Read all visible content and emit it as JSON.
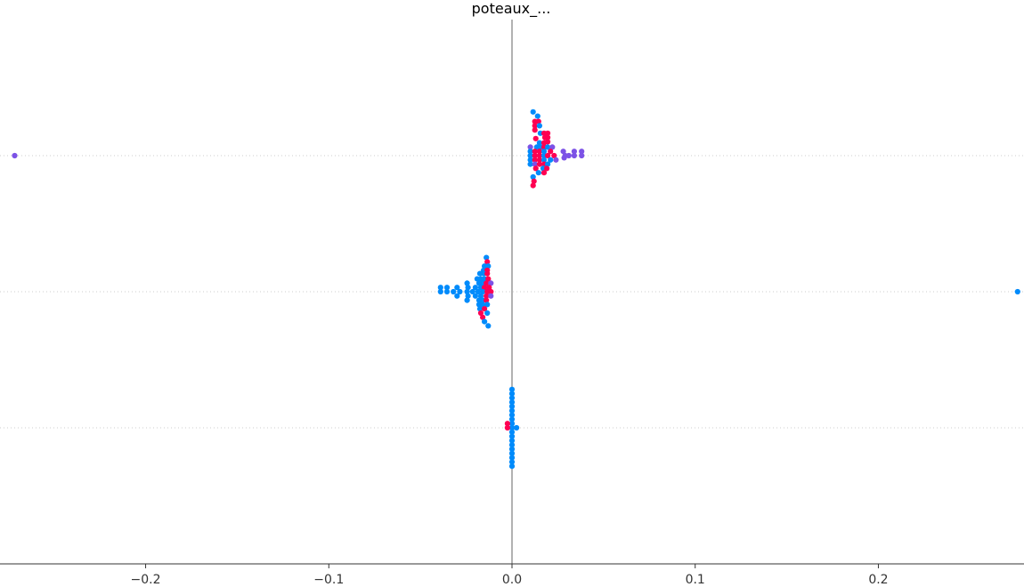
{
  "chart_data": {
    "type": "scatter",
    "title": "poteaux_...",
    "xlabel": "",
    "ylabel": "",
    "xlim": [
      -0.2795,
      0.2795
    ],
    "x_ticks": [
      -0.2,
      -0.1,
      0.0,
      0.1,
      0.2
    ],
    "x_tick_labels": [
      "−0.2",
      "−0.1",
      "0.0",
      "0.1",
      "0.2"
    ],
    "y_categories": [
      "row_1",
      "row_2",
      "row_3"
    ],
    "grid": false,
    "colors": {
      "low": "#008bfb",
      "mid": "#7c52e6",
      "high": "#ff0052",
      "zero_line": "#999999",
      "axis": "#333333",
      "row_line": "#cccccc"
    },
    "rows": [
      {
        "row": 0,
        "points": [
          {
            "x": -0.2715,
            "y": 0.0,
            "c": "mid"
          },
          {
            "x": 0.0115,
            "y": 0.82,
            "c": "low"
          },
          {
            "x": 0.014,
            "y": 0.74,
            "c": "low"
          },
          {
            "x": 0.0125,
            "y": 0.64,
            "c": "high"
          },
          {
            "x": 0.0145,
            "y": 0.64,
            "c": "high"
          },
          {
            "x": 0.0125,
            "y": 0.56,
            "c": "high"
          },
          {
            "x": 0.015,
            "y": 0.56,
            "c": "low"
          },
          {
            "x": 0.0125,
            "y": 0.48,
            "c": "high"
          },
          {
            "x": 0.0155,
            "y": 0.42,
            "c": "low"
          },
          {
            "x": 0.0175,
            "y": 0.42,
            "c": "high"
          },
          {
            "x": 0.0195,
            "y": 0.42,
            "c": "high"
          },
          {
            "x": 0.013,
            "y": 0.32,
            "c": "high"
          },
          {
            "x": 0.018,
            "y": 0.34,
            "c": "high"
          },
          {
            "x": 0.0195,
            "y": 0.34,
            "c": "high"
          },
          {
            "x": 0.015,
            "y": 0.24,
            "c": "low"
          },
          {
            "x": 0.0175,
            "y": 0.24,
            "c": "high"
          },
          {
            "x": 0.0195,
            "y": 0.26,
            "c": "high"
          },
          {
            "x": 0.01,
            "y": 0.16,
            "c": "mid"
          },
          {
            "x": 0.0135,
            "y": 0.16,
            "c": "low"
          },
          {
            "x": 0.0155,
            "y": 0.16,
            "c": "low"
          },
          {
            "x": 0.0175,
            "y": 0.16,
            "c": "high"
          },
          {
            "x": 0.0195,
            "y": 0.16,
            "c": "low"
          },
          {
            "x": 0.022,
            "y": 0.16,
            "c": "mid"
          },
          {
            "x": 0.01,
            "y": 0.08,
            "c": "low"
          },
          {
            "x": 0.0125,
            "y": 0.08,
            "c": "high"
          },
          {
            "x": 0.015,
            "y": 0.08,
            "c": "high"
          },
          {
            "x": 0.0175,
            "y": 0.08,
            "c": "low"
          },
          {
            "x": 0.021,
            "y": 0.08,
            "c": "high"
          },
          {
            "x": 0.028,
            "y": 0.08,
            "c": "mid"
          },
          {
            "x": 0.034,
            "y": 0.08,
            "c": "mid"
          },
          {
            "x": 0.038,
            "y": 0.08,
            "c": "mid"
          },
          {
            "x": 0.01,
            "y": 0.0,
            "c": "low"
          },
          {
            "x": 0.0125,
            "y": 0.0,
            "c": "high"
          },
          {
            "x": 0.015,
            "y": 0.0,
            "c": "high"
          },
          {
            "x": 0.0175,
            "y": 0.0,
            "c": "low"
          },
          {
            "x": 0.0195,
            "y": 0.0,
            "c": "high"
          },
          {
            "x": 0.023,
            "y": 0.0,
            "c": "high"
          },
          {
            "x": 0.029,
            "y": 0.0,
            "c": "mid"
          },
          {
            "x": 0.031,
            "y": 0.0,
            "c": "mid"
          },
          {
            "x": 0.034,
            "y": 0.0,
            "c": "mid"
          },
          {
            "x": 0.038,
            "y": 0.0,
            "c": "mid"
          },
          {
            "x": 0.01,
            "y": -0.08,
            "c": "low"
          },
          {
            "x": 0.0125,
            "y": -0.08,
            "c": "high"
          },
          {
            "x": 0.015,
            "y": -0.08,
            "c": "high"
          },
          {
            "x": 0.0175,
            "y": -0.08,
            "c": "low"
          },
          {
            "x": 0.021,
            "y": -0.08,
            "c": "low"
          },
          {
            "x": 0.024,
            "y": -0.08,
            "c": "mid"
          },
          {
            "x": 0.0285,
            "y": -0.04,
            "c": "mid"
          },
          {
            "x": 0.01,
            "y": -0.16,
            "c": "low"
          },
          {
            "x": 0.0125,
            "y": -0.16,
            "c": "mid"
          },
          {
            "x": 0.015,
            "y": -0.16,
            "c": "high"
          },
          {
            "x": 0.0175,
            "y": -0.16,
            "c": "high"
          },
          {
            "x": 0.0195,
            "y": -0.16,
            "c": "low"
          },
          {
            "x": 0.013,
            "y": -0.24,
            "c": "high"
          },
          {
            "x": 0.017,
            "y": -0.24,
            "c": "low"
          },
          {
            "x": 0.019,
            "y": -0.24,
            "c": "high"
          },
          {
            "x": 0.0145,
            "y": -0.32,
            "c": "low"
          },
          {
            "x": 0.0175,
            "y": -0.32,
            "c": "high"
          },
          {
            "x": 0.0115,
            "y": -0.4,
            "c": "low"
          },
          {
            "x": 0.012,
            "y": -0.48,
            "c": "high"
          },
          {
            "x": 0.0115,
            "y": -0.56,
            "c": "high"
          }
        ]
      },
      {
        "row": 1,
        "points": [
          {
            "x": 0.276,
            "y": 0.0,
            "c": "low"
          },
          {
            "x": -0.014,
            "y": 0.64,
            "c": "low"
          },
          {
            "x": -0.0135,
            "y": 0.56,
            "c": "high"
          },
          {
            "x": -0.015,
            "y": 0.48,
            "c": "low"
          },
          {
            "x": -0.013,
            "y": 0.48,
            "c": "low"
          },
          {
            "x": -0.0155,
            "y": 0.4,
            "c": "low"
          },
          {
            "x": -0.0135,
            "y": 0.4,
            "c": "high"
          },
          {
            "x": -0.0175,
            "y": 0.34,
            "c": "low"
          },
          {
            "x": -0.0155,
            "y": 0.34,
            "c": "low"
          },
          {
            "x": -0.0135,
            "y": 0.34,
            "c": "high"
          },
          {
            "x": -0.019,
            "y": 0.24,
            "c": "low"
          },
          {
            "x": -0.017,
            "y": 0.24,
            "c": "low"
          },
          {
            "x": -0.015,
            "y": 0.24,
            "c": "low"
          },
          {
            "x": -0.013,
            "y": 0.24,
            "c": "high"
          },
          {
            "x": -0.0245,
            "y": 0.16,
            "c": "low"
          },
          {
            "x": -0.018,
            "y": 0.16,
            "c": "low"
          },
          {
            "x": -0.016,
            "y": 0.16,
            "c": "low"
          },
          {
            "x": -0.014,
            "y": 0.16,
            "c": "high"
          },
          {
            "x": -0.0115,
            "y": 0.16,
            "c": "mid"
          },
          {
            "x": -0.039,
            "y": 0.08,
            "c": "low"
          },
          {
            "x": -0.0355,
            "y": 0.08,
            "c": "low"
          },
          {
            "x": -0.03,
            "y": 0.08,
            "c": "low"
          },
          {
            "x": -0.024,
            "y": 0.08,
            "c": "low"
          },
          {
            "x": -0.02,
            "y": 0.08,
            "c": "low"
          },
          {
            "x": -0.017,
            "y": 0.08,
            "c": "low"
          },
          {
            "x": -0.015,
            "y": 0.08,
            "c": "high"
          },
          {
            "x": -0.0125,
            "y": 0.08,
            "c": "high"
          },
          {
            "x": -0.039,
            "y": 0.0,
            "c": "low"
          },
          {
            "x": -0.0355,
            "y": 0.0,
            "c": "low"
          },
          {
            "x": -0.032,
            "y": 0.0,
            "c": "low"
          },
          {
            "x": -0.0285,
            "y": 0.0,
            "c": "low"
          },
          {
            "x": -0.0245,
            "y": 0.0,
            "c": "low"
          },
          {
            "x": -0.0215,
            "y": 0.0,
            "c": "low"
          },
          {
            "x": -0.0185,
            "y": 0.0,
            "c": "low"
          },
          {
            "x": -0.016,
            "y": 0.0,
            "c": "low"
          },
          {
            "x": -0.0135,
            "y": 0.0,
            "c": "high"
          },
          {
            "x": -0.0115,
            "y": 0.0,
            "c": "high"
          },
          {
            "x": -0.03,
            "y": -0.08,
            "c": "low"
          },
          {
            "x": -0.024,
            "y": -0.08,
            "c": "low"
          },
          {
            "x": -0.02,
            "y": -0.08,
            "c": "low"
          },
          {
            "x": -0.017,
            "y": -0.08,
            "c": "low"
          },
          {
            "x": -0.014,
            "y": -0.08,
            "c": "high"
          },
          {
            "x": -0.0115,
            "y": -0.08,
            "c": "mid"
          },
          {
            "x": -0.0245,
            "y": -0.16,
            "c": "low"
          },
          {
            "x": -0.018,
            "y": -0.16,
            "c": "low"
          },
          {
            "x": -0.016,
            "y": -0.16,
            "c": "low"
          },
          {
            "x": -0.014,
            "y": -0.16,
            "c": "high"
          },
          {
            "x": -0.018,
            "y": -0.24,
            "c": "low"
          },
          {
            "x": -0.016,
            "y": -0.24,
            "c": "low"
          },
          {
            "x": -0.0135,
            "y": -0.24,
            "c": "low"
          },
          {
            "x": -0.0175,
            "y": -0.32,
            "c": "low"
          },
          {
            "x": -0.015,
            "y": -0.32,
            "c": "high"
          },
          {
            "x": -0.017,
            "y": -0.4,
            "c": "high"
          },
          {
            "x": -0.0135,
            "y": -0.4,
            "c": "low"
          },
          {
            "x": -0.016,
            "y": -0.48,
            "c": "high"
          },
          {
            "x": -0.015,
            "y": -0.56,
            "c": "low"
          },
          {
            "x": -0.013,
            "y": -0.64,
            "c": "low"
          }
        ]
      },
      {
        "row": 2,
        "points": [
          {
            "x": 0.0,
            "y": 0.72,
            "c": "low"
          },
          {
            "x": 0.0,
            "y": 0.64,
            "c": "low"
          },
          {
            "x": 0.0,
            "y": 0.56,
            "c": "low"
          },
          {
            "x": 0.0,
            "y": 0.48,
            "c": "low"
          },
          {
            "x": 0.0,
            "y": 0.4,
            "c": "low"
          },
          {
            "x": 0.0,
            "y": 0.32,
            "c": "low"
          },
          {
            "x": 0.0,
            "y": 0.24,
            "c": "low"
          },
          {
            "x": 0.0,
            "y": 0.16,
            "c": "low"
          },
          {
            "x": 0.0,
            "y": 0.08,
            "c": "low"
          },
          {
            "x": -0.0025,
            "y": 0.08,
            "c": "high"
          },
          {
            "x": 0.0025,
            "y": 0.0,
            "c": "low"
          },
          {
            "x": 0.0,
            "y": 0.0,
            "c": "low"
          },
          {
            "x": -0.0025,
            "y": 0.0,
            "c": "high"
          },
          {
            "x": 0.0,
            "y": -0.08,
            "c": "low"
          },
          {
            "x": 0.0,
            "y": -0.16,
            "c": "low"
          },
          {
            "x": 0.0,
            "y": -0.24,
            "c": "low"
          },
          {
            "x": 0.0,
            "y": -0.32,
            "c": "low"
          },
          {
            "x": 0.0,
            "y": -0.4,
            "c": "low"
          },
          {
            "x": 0.0,
            "y": -0.48,
            "c": "low"
          },
          {
            "x": 0.0,
            "y": -0.56,
            "c": "low"
          },
          {
            "x": 0.0,
            "y": -0.64,
            "c": "low"
          },
          {
            "x": 0.0,
            "y": -0.72,
            "c": "low"
          }
        ]
      }
    ]
  }
}
